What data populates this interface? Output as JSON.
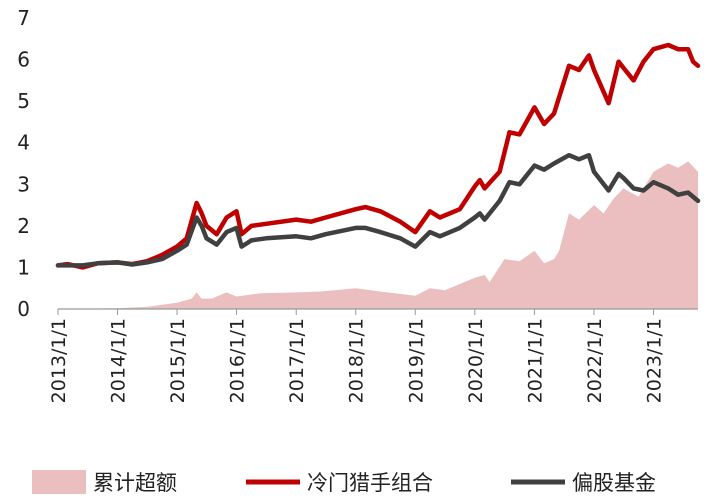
{
  "chart_data": {
    "type": "line",
    "ylim": [
      0,
      7
    ],
    "yticks": [
      0,
      1,
      2,
      3,
      4,
      5,
      6,
      7
    ],
    "x_tick_labels": [
      "2013/1/1",
      "2014/1/1",
      "2015/1/1",
      "2016/1/1",
      "2017/1/1",
      "2018/1/1",
      "2019/1/1",
      "2020/1/1",
      "2021/1/1",
      "2022/1/1",
      "2023/1/1"
    ],
    "xlim": [
      "2013-01-01",
      "2023-10-01"
    ],
    "legend_position": "bottom",
    "series": [
      {
        "name": "累计超额",
        "kind": "area",
        "color": "#ebbfbf",
        "points": [
          [
            "2013-01-01",
            0.0
          ],
          [
            "2014-01-01",
            0.02
          ],
          [
            "2014-07-01",
            0.05
          ],
          [
            "2015-01-01",
            0.15
          ],
          [
            "2015-04-01",
            0.25
          ],
          [
            "2015-05-01",
            0.4
          ],
          [
            "2015-06-01",
            0.25
          ],
          [
            "2015-08-01",
            0.25
          ],
          [
            "2015-11-01",
            0.4
          ],
          [
            "2016-01-01",
            0.3
          ],
          [
            "2016-06-01",
            0.38
          ],
          [
            "2017-01-01",
            0.4
          ],
          [
            "2017-06-01",
            0.42
          ],
          [
            "2018-01-01",
            0.5
          ],
          [
            "2018-06-01",
            0.42
          ],
          [
            "2019-01-01",
            0.32
          ],
          [
            "2019-04-01",
            0.5
          ],
          [
            "2019-07-01",
            0.45
          ],
          [
            "2020-01-01",
            0.75
          ],
          [
            "2020-03-01",
            0.82
          ],
          [
            "2020-04-01",
            0.65
          ],
          [
            "2020-07-01",
            1.2
          ],
          [
            "2020-10-01",
            1.15
          ],
          [
            "2021-01-01",
            1.4
          ],
          [
            "2021-03-01",
            1.1
          ],
          [
            "2021-05-01",
            1.2
          ],
          [
            "2021-06-01",
            1.4
          ],
          [
            "2021-08-01",
            2.3
          ],
          [
            "2021-10-01",
            2.15
          ],
          [
            "2022-01-01",
            2.5
          ],
          [
            "2022-03-01",
            2.3
          ],
          [
            "2022-05-01",
            2.65
          ],
          [
            "2022-07-01",
            2.9
          ],
          [
            "2022-10-01",
            2.7
          ],
          [
            "2023-01-01",
            3.3
          ],
          [
            "2023-04-01",
            3.5
          ],
          [
            "2023-06-01",
            3.4
          ],
          [
            "2023-08-01",
            3.55
          ],
          [
            "2023-10-01",
            3.3
          ]
        ]
      },
      {
        "name": "冷门猎手组合",
        "kind": "line",
        "color": "#c00000",
        "points": [
          [
            "2013-01-01",
            1.05
          ],
          [
            "2013-03-01",
            1.08
          ],
          [
            "2013-06-01",
            1.0
          ],
          [
            "2013-09-01",
            1.1
          ],
          [
            "2014-01-01",
            1.12
          ],
          [
            "2014-04-01",
            1.08
          ],
          [
            "2014-07-01",
            1.15
          ],
          [
            "2014-10-01",
            1.3
          ],
          [
            "2015-01-01",
            1.5
          ],
          [
            "2015-03-01",
            1.7
          ],
          [
            "2015-05-01",
            2.55
          ],
          [
            "2015-06-01",
            2.3
          ],
          [
            "2015-07-01",
            2.0
          ],
          [
            "2015-09-01",
            1.8
          ],
          [
            "2015-11-01",
            2.2
          ],
          [
            "2016-01-01",
            2.35
          ],
          [
            "2016-02-01",
            1.8
          ],
          [
            "2016-04-01",
            2.0
          ],
          [
            "2016-07-01",
            2.05
          ],
          [
            "2017-01-01",
            2.15
          ],
          [
            "2017-04-01",
            2.1
          ],
          [
            "2017-07-01",
            2.2
          ],
          [
            "2018-01-01",
            2.4
          ],
          [
            "2018-03-01",
            2.45
          ],
          [
            "2018-06-01",
            2.35
          ],
          [
            "2018-10-01",
            2.1
          ],
          [
            "2019-01-01",
            1.85
          ],
          [
            "2019-04-01",
            2.35
          ],
          [
            "2019-06-01",
            2.2
          ],
          [
            "2019-10-01",
            2.4
          ],
          [
            "2020-01-01",
            2.95
          ],
          [
            "2020-02-01",
            3.1
          ],
          [
            "2020-03-01",
            2.9
          ],
          [
            "2020-06-01",
            3.3
          ],
          [
            "2020-08-01",
            4.25
          ],
          [
            "2020-10-01",
            4.2
          ],
          [
            "2021-01-01",
            4.85
          ],
          [
            "2021-03-01",
            4.45
          ],
          [
            "2021-05-01",
            4.7
          ],
          [
            "2021-08-01",
            5.85
          ],
          [
            "2021-10-01",
            5.75
          ],
          [
            "2021-12-01",
            6.1
          ],
          [
            "2022-01-01",
            5.75
          ],
          [
            "2022-04-01",
            4.95
          ],
          [
            "2022-06-01",
            5.95
          ],
          [
            "2022-07-01",
            5.8
          ],
          [
            "2022-09-01",
            5.5
          ],
          [
            "2022-11-01",
            5.95
          ],
          [
            "2023-01-01",
            6.25
          ],
          [
            "2023-04-01",
            6.35
          ],
          [
            "2023-06-01",
            6.25
          ],
          [
            "2023-08-01",
            6.25
          ],
          [
            "2023-09-01",
            5.95
          ],
          [
            "2023-10-01",
            5.85
          ]
        ]
      },
      {
        "name": "偏股基金",
        "kind": "line",
        "color": "#404040",
        "points": [
          [
            "2013-01-01",
            1.05
          ],
          [
            "2013-03-01",
            1.05
          ],
          [
            "2013-06-01",
            1.05
          ],
          [
            "2013-09-01",
            1.1
          ],
          [
            "2014-01-01",
            1.12
          ],
          [
            "2014-04-01",
            1.07
          ],
          [
            "2014-07-01",
            1.12
          ],
          [
            "2014-10-01",
            1.2
          ],
          [
            "2015-01-01",
            1.4
          ],
          [
            "2015-03-01",
            1.55
          ],
          [
            "2015-05-01",
            2.2
          ],
          [
            "2015-06-01",
            2.0
          ],
          [
            "2015-07-01",
            1.7
          ],
          [
            "2015-09-01",
            1.55
          ],
          [
            "2015-11-01",
            1.85
          ],
          [
            "2016-01-01",
            1.95
          ],
          [
            "2016-02-01",
            1.5
          ],
          [
            "2016-04-01",
            1.65
          ],
          [
            "2016-07-01",
            1.7
          ],
          [
            "2017-01-01",
            1.75
          ],
          [
            "2017-04-01",
            1.7
          ],
          [
            "2017-07-01",
            1.8
          ],
          [
            "2018-01-01",
            1.95
          ],
          [
            "2018-03-01",
            1.95
          ],
          [
            "2018-06-01",
            1.85
          ],
          [
            "2018-10-01",
            1.7
          ],
          [
            "2019-01-01",
            1.5
          ],
          [
            "2019-04-01",
            1.85
          ],
          [
            "2019-06-01",
            1.75
          ],
          [
            "2019-10-01",
            1.95
          ],
          [
            "2020-01-01",
            2.2
          ],
          [
            "2020-02-01",
            2.3
          ],
          [
            "2020-03-01",
            2.15
          ],
          [
            "2020-06-01",
            2.6
          ],
          [
            "2020-08-01",
            3.05
          ],
          [
            "2020-10-01",
            3.0
          ],
          [
            "2021-01-01",
            3.45
          ],
          [
            "2021-03-01",
            3.35
          ],
          [
            "2021-05-01",
            3.5
          ],
          [
            "2021-08-01",
            3.7
          ],
          [
            "2021-10-01",
            3.6
          ],
          [
            "2021-12-01",
            3.7
          ],
          [
            "2022-01-01",
            3.3
          ],
          [
            "2022-04-01",
            2.85
          ],
          [
            "2022-06-01",
            3.25
          ],
          [
            "2022-07-01",
            3.15
          ],
          [
            "2022-09-01",
            2.9
          ],
          [
            "2022-11-01",
            2.85
          ],
          [
            "2023-01-01",
            3.05
          ],
          [
            "2023-04-01",
            2.9
          ],
          [
            "2023-06-01",
            2.75
          ],
          [
            "2023-08-01",
            2.8
          ],
          [
            "2023-10-01",
            2.6
          ]
        ]
      }
    ]
  }
}
